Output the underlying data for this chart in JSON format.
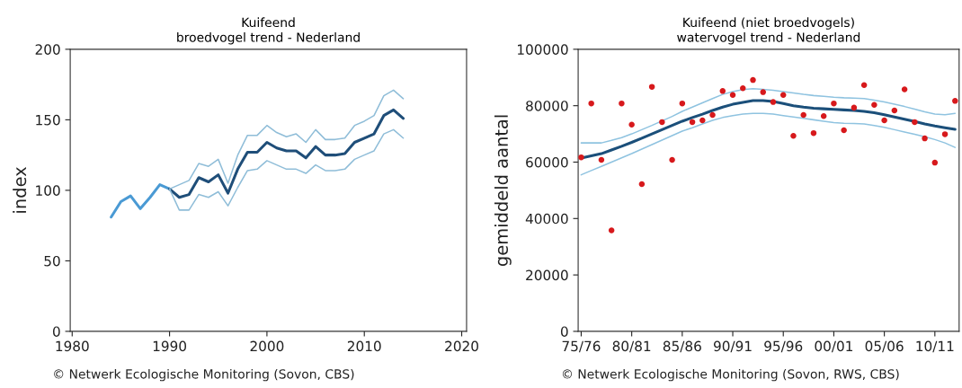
{
  "chart_data": [
    {
      "type": "line",
      "title": "Kuifeend\nbroedvogel trend - Nederland",
      "ylabel": "index",
      "xlim": [
        1979.8,
        2020.5
      ],
      "ylim": [
        0,
        200
      ],
      "xticks": [
        1980,
        1990,
        2000,
        2010,
        2020
      ],
      "yticks": [
        0,
        50,
        100,
        150,
        200
      ],
      "grid": false,
      "legend": false,
      "series": [
        {
          "color": "#4a9ad4",
          "x": [
            1984,
            1985,
            1986,
            1987,
            1988,
            1989,
            1990
          ],
          "values": [
            81,
            92,
            96,
            87,
            95,
            104,
            101
          ]
        },
        {
          "color": "#1f4e79",
          "x": [
            1990,
            1991,
            1992,
            1993,
            1994,
            1995,
            1996,
            1997,
            1998,
            1999,
            2000,
            2001,
            2002,
            2003,
            2004,
            2005,
            2006,
            2007,
            2008,
            2009,
            2010,
            2011,
            2012,
            2013,
            2014
          ],
          "values": [
            101,
            95,
            97,
            109,
            106,
            111,
            98,
            115,
            127,
            127,
            134,
            130,
            128,
            128,
            123,
            131,
            125,
            125,
            126,
            134,
            137,
            140,
            153,
            157,
            151
          ]
        },
        {
          "color": "#8fbdd8",
          "x": [
            1990,
            1991,
            1992,
            1993,
            1994,
            1995,
            1996,
            1997,
            1998,
            1999,
            2000,
            2001,
            2002,
            2003,
            2004,
            2005,
            2006,
            2007,
            2008,
            2009,
            2010,
            2011,
            2012,
            2013,
            2014
          ],
          "values": [
            101,
            104,
            107,
            119,
            117,
            122,
            105,
            125,
            139,
            139,
            146,
            141,
            138,
            140,
            134,
            143,
            136,
            136,
            137,
            146,
            149,
            153,
            167,
            171,
            165
          ]
        },
        {
          "color": "#8fbdd8",
          "x": [
            1990,
            1991,
            1992,
            1993,
            1994,
            1995,
            1996,
            1997,
            1998,
            1999,
            2000,
            2001,
            2002,
            2003,
            2004,
            2005,
            2006,
            2007,
            2008,
            2009,
            2010,
            2011,
            2012,
            2013,
            2014
          ],
          "values": [
            101,
            86,
            86,
            97,
            95,
            99,
            89,
            102,
            114,
            115,
            121,
            118,
            115,
            115,
            112,
            118,
            114,
            114,
            115,
            122,
            125,
            128,
            140,
            143,
            137
          ]
        }
      ],
      "annotations": [
        "© Netwerk Ecologische Monitoring (Sovon, CBS)"
      ]
    },
    {
      "type": "line",
      "title": "Kuifeend (niet broedvogels)\nwatervogel trend - Nederland",
      "ylabel": "gemiddeld aantal",
      "categories": [
        "75/76",
        null,
        null,
        null,
        null,
        "80/81",
        null,
        null,
        null,
        null,
        "85/86",
        null,
        null,
        null,
        null,
        "90/91",
        null,
        null,
        null,
        null,
        "95/96",
        null,
        null,
        null,
        null,
        "00/01",
        null,
        null,
        null,
        null,
        "05/06",
        null,
        null,
        null,
        null,
        "10/11",
        null,
        null
      ],
      "ylim": [
        0,
        100000
      ],
      "yticks": [
        0,
        20000,
        40000,
        60000,
        80000,
        100000
      ],
      "grid": false,
      "legend": false,
      "series": [
        {
          "color": "#8fc3e0",
          "values": [
            66800,
            66800,
            66800,
            67700,
            68700,
            70000,
            71500,
            73000,
            74600,
            76200,
            78000,
            79500,
            81000,
            82500,
            84000,
            85000,
            85700,
            86000,
            85800,
            85500,
            85000,
            84500,
            84000,
            83600,
            83300,
            83000,
            82800,
            82700,
            82500,
            82000,
            81300,
            80500,
            79700,
            78800,
            77800,
            77000,
            76800,
            77300
          ]
        },
        {
          "color": "#8fc3e0",
          "values": [
            55500,
            57000,
            58500,
            60000,
            61500,
            63000,
            64600,
            66200,
            67800,
            69400,
            71000,
            72200,
            73500,
            74800,
            75800,
            76500,
            77000,
            77300,
            77300,
            77000,
            76500,
            76000,
            75500,
            75000,
            74500,
            74000,
            73800,
            73700,
            73500,
            73000,
            72300,
            71500,
            70700,
            69900,
            69000,
            68000,
            66800,
            65200
          ]
        },
        {
          "color": "#1b4f7a",
          "values": [
            61400,
            62200,
            63000,
            64300,
            65600,
            67000,
            68500,
            70000,
            71500,
            73000,
            74500,
            75800,
            77000,
            78300,
            79500,
            80500,
            81200,
            81800,
            81800,
            81500,
            80800,
            80000,
            79500,
            79100,
            78900,
            78700,
            78500,
            78300,
            78000,
            77500,
            76800,
            76000,
            75200,
            74400,
            73500,
            72800,
            72200,
            71600
          ]
        },
        {
          "type": "scatter",
          "color": "#d7191c",
          "values": [
            61700,
            80800,
            60800,
            35800,
            80800,
            73300,
            52200,
            86700,
            74200,
            60800,
            80800,
            74200,
            74800,
            76700,
            85200,
            83800,
            86200,
            89100,
            84800,
            81300,
            83800,
            69300,
            76700,
            70300,
            76300,
            80800,
            71300,
            79300,
            87300,
            80300,
            74800,
            78300,
            85800,
            74200,
            68400,
            59800,
            69900,
            81700
          ]
        }
      ],
      "annotations": [
        "© Netwerk Ecologische Monitoring (Sovon, RWS, CBS)"
      ]
    }
  ]
}
